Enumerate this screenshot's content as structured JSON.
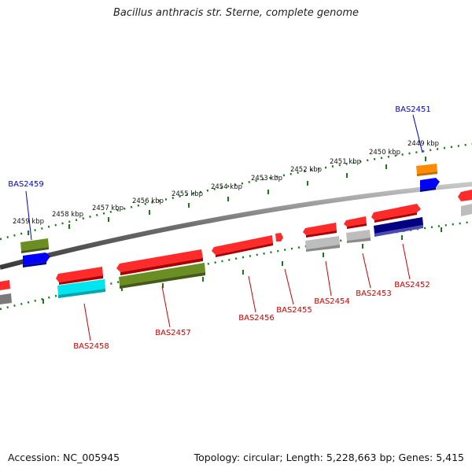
{
  "title": "Bacillus anthracis str. Sterne, complete genome",
  "accession_label": "Accession: NC_005945",
  "topology_label": "Topology: circular; Length: 5,228,663 bp; Genes: 5,415",
  "scale_labels": [
    "2459 kbp",
    "2458 kbp",
    "2457 kbp",
    "2456 kbp",
    "2455 kbp",
    "2454 kbp",
    "2453 kbp",
    "2452 kbp",
    "2451 kbp",
    "2450 kbp",
    "2449 kbp"
  ],
  "genes_top": [
    "BAS2459",
    "BAS2451"
  ],
  "genes_bottom": [
    "BAS2458",
    "BAS2457",
    "BAS2456",
    "BAS2455",
    "BAS2454",
    "BAS2453",
    "BAS2452"
  ],
  "colors": {
    "top_label": "#0000cc",
    "bottom_label": "#cc0000",
    "red": "#ff0000",
    "olive": "#6b8e23",
    "blue": "#0000ff",
    "orange": "#ff8c00",
    "cyan": "#00e5ee",
    "navy": "#000080",
    "gray": "#b0b0b0",
    "tick": "#1a7a1a"
  }
}
